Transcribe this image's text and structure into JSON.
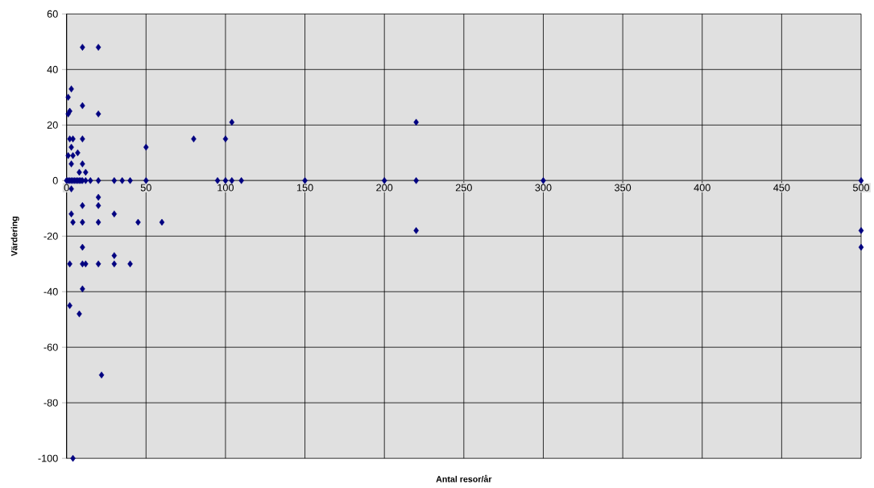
{
  "chart_data": {
    "type": "scatter",
    "xlabel": "Antal resor/år",
    "ylabel": "Värdering",
    "x": [
      10,
      20,
      1,
      3,
      2,
      1,
      10,
      20,
      220,
      104,
      2,
      4,
      10,
      80,
      100,
      50,
      3,
      1,
      4,
      7,
      3,
      10,
      8,
      12,
      0,
      1,
      2,
      3,
      4,
      5,
      6,
      7,
      8,
      9,
      10,
      12,
      15,
      20,
      30,
      35,
      40,
      50,
      95,
      100,
      104,
      110,
      150,
      200,
      220,
      300,
      500,
      3,
      20,
      10,
      20,
      30,
      3,
      4,
      10,
      20,
      45,
      60,
      220,
      500,
      500,
      10,
      30,
      2,
      10,
      12,
      20,
      30,
      40,
      10,
      2,
      8,
      22,
      4
    ],
    "values": [
      48,
      48,
      30,
      33,
      25,
      24,
      27,
      24,
      21,
      21,
      15,
      15,
      15,
      15,
      15,
      12,
      12,
      9,
      9,
      10,
      6,
      6,
      3,
      3,
      0,
      0,
      0,
      0,
      0,
      0,
      0,
      0,
      0,
      0,
      0,
      0,
      0,
      0,
      0,
      0,
      0,
      0,
      0,
      0,
      0,
      0,
      0,
      0,
      0,
      0,
      0,
      -3,
      -6,
      -9,
      -9,
      -12,
      -12,
      -15,
      -15,
      -15,
      -15,
      -15,
      -18,
      -18,
      -24,
      -24,
      -27,
      -30,
      -30,
      -30,
      -30,
      -30,
      -30,
      -39,
      -45,
      -48,
      -70,
      -100
    ],
    "color": "#000080",
    "marker": "diamond",
    "grid": true,
    "xlim": [
      0,
      500
    ],
    "xticks": [
      0,
      50,
      100,
      150,
      200,
      250,
      300,
      350,
      400,
      450,
      500
    ],
    "ylim": [
      -100,
      60
    ],
    "yticks": [
      -100,
      -80,
      -60,
      -40,
      -20,
      0,
      20,
      40,
      60
    ]
  }
}
